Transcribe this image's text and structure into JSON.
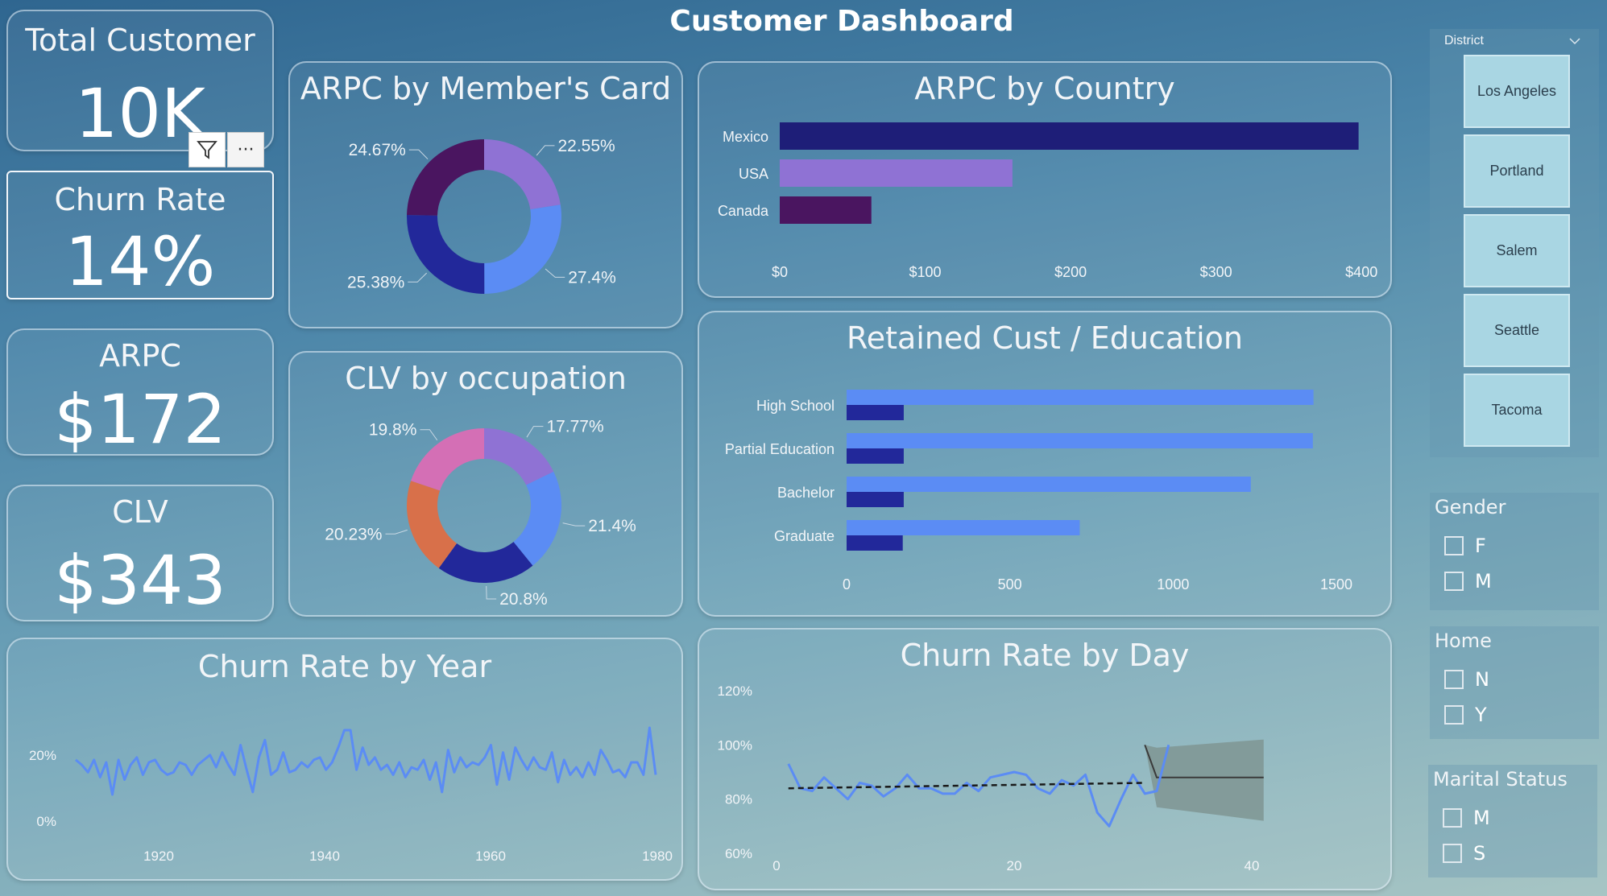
{
  "page": {
    "title": "Customer Dashboard"
  },
  "kpis": {
    "total_customer": {
      "title": "Total Customer",
      "value": "10K"
    },
    "churn_rate": {
      "title": "Churn Rate",
      "value": "14%"
    },
    "arpc": {
      "title": "ARPC",
      "value": "$172"
    },
    "clv": {
      "title": "CLV",
      "value": "$343"
    }
  },
  "visual_header": {
    "filter_icon": "filter-icon",
    "more_label": "···"
  },
  "charts": {
    "arpc_by_card": {
      "title": "ARPC by Member's Card"
    },
    "clv_by_occupation": {
      "title": "CLV by occupation"
    },
    "arpc_by_country": {
      "title": "ARPC by Country"
    },
    "retained_by_education": {
      "title": "Retained Cust / Education"
    },
    "churn_by_year": {
      "title": "Churn Rate by Year"
    },
    "churn_by_day": {
      "title": "Churn Rate by Day"
    }
  },
  "chart_data": [
    {
      "id": "arpc_by_card",
      "type": "pie",
      "title": "ARPC by Member's Card",
      "slices": [
        {
          "value": 22.55,
          "label": "22.55%",
          "color": "#8f72d4"
        },
        {
          "value": 27.4,
          "label": "27.4%",
          "color": "#5b8cf4"
        },
        {
          "value": 25.38,
          "label": "25.38%",
          "color": "#22289a"
        },
        {
          "value": 24.67,
          "label": "24.67%",
          "color": "#4a1560"
        }
      ]
    },
    {
      "id": "clv_by_occupation",
      "type": "pie",
      "title": "CLV by occupation",
      "slices": [
        {
          "value": 17.77,
          "label": "17.77%",
          "color": "#8f72d4"
        },
        {
          "value": 21.4,
          "label": "21.4%",
          "color": "#5b8cf4"
        },
        {
          "value": 20.8,
          "label": "20.8%",
          "color": "#22289a"
        },
        {
          "value": 20.23,
          "label": "20.23%",
          "color": "#d8704a"
        },
        {
          "value": 19.8,
          "label": "19.8%",
          "color": "#d46fb5"
        }
      ]
    },
    {
      "id": "arpc_by_country",
      "type": "bar",
      "title": "ARPC by Country",
      "categories": [
        "Mexico",
        "USA",
        "Canada"
      ],
      "values": [
        398,
        160,
        63
      ],
      "colors": [
        "#1e1e78",
        "#8f72d4",
        "#4a1560"
      ],
      "xlim": [
        0,
        400
      ],
      "ticks": [
        "$0",
        "$100",
        "$200",
        "$300",
        "$400"
      ]
    },
    {
      "id": "retained_by_education",
      "type": "bar",
      "title": "Retained Cust / Education",
      "categories": [
        "High School",
        "Partial Education",
        "Bachelor",
        "Graduate"
      ],
      "series": [
        {
          "values": [
            1430,
            1428,
            1238,
            714
          ],
          "color": "#5b8cf4"
        },
        {
          "values": [
            175,
            175,
            175,
            172
          ],
          "color": "#22289a"
        }
      ],
      "xlim": [
        0,
        1500
      ],
      "ticks": [
        "0",
        "500",
        "1000",
        "1500"
      ]
    },
    {
      "id": "churn_by_year",
      "type": "line",
      "title": "Churn Rate by Year",
      "x_start": 1910,
      "x_step": 1,
      "ylim": [
        0,
        0.27
      ],
      "y_ticks": [
        "0%",
        "20%"
      ],
      "x_ticks": [
        "1920",
        "1940",
        "1960",
        "1980"
      ],
      "color": "#5b8cf4",
      "values": [
        0.14,
        0.13,
        0.115,
        0.14,
        0.105,
        0.135,
        0.07,
        0.14,
        0.1,
        0.13,
        0.145,
        0.11,
        0.135,
        0.14,
        0.12,
        0.11,
        0.115,
        0.135,
        0.13,
        0.11,
        0.13,
        0.14,
        0.15,
        0.125,
        0.155,
        0.13,
        0.11,
        0.17,
        0.12,
        0.075,
        0.145,
        0.18,
        0.11,
        0.12,
        0.155,
        0.115,
        0.12,
        0.135,
        0.125,
        0.14,
        0.145,
        0.12,
        0.135,
        0.165,
        0.2,
        0.2,
        0.12,
        0.165,
        0.13,
        0.145,
        0.12,
        0.13,
        0.11,
        0.135,
        0.105,
        0.125,
        0.12,
        0.14,
        0.1,
        0.135,
        0.075,
        0.16,
        0.115,
        0.145,
        0.125,
        0.135,
        0.13,
        0.145,
        0.17,
        0.09,
        0.155,
        0.1,
        0.165,
        0.14,
        0.12,
        0.145,
        0.125,
        0.12,
        0.155,
        0.095,
        0.14,
        0.11,
        0.125,
        0.105,
        0.135,
        0.11,
        0.16,
        0.14,
        0.115,
        0.12,
        0.105,
        0.135,
        0.135,
        0.11,
        0.205,
        0.11
      ]
    },
    {
      "id": "churn_by_day",
      "type": "line",
      "title": "Churn Rate by Day",
      "xlim": [
        0,
        45
      ],
      "ylim": [
        0.6,
        1.2
      ],
      "y_ticks": [
        "120%",
        "100%",
        "80%",
        "60%"
      ],
      "x_ticks": [
        "0",
        "20",
        "40"
      ],
      "color": "#5b8cf4",
      "x": [
        1,
        2,
        3,
        4,
        5,
        6,
        7,
        8,
        9,
        10,
        11,
        12,
        13,
        14,
        15,
        16,
        17,
        18,
        19,
        20,
        21,
        22,
        23,
        24,
        25,
        26,
        27,
        28,
        29,
        30,
        31,
        32,
        33
      ],
      "values": [
        0.93,
        0.84,
        0.83,
        0.88,
        0.84,
        0.8,
        0.86,
        0.85,
        0.81,
        0.84,
        0.89,
        0.84,
        0.84,
        0.82,
        0.82,
        0.86,
        0.83,
        0.88,
        0.89,
        0.9,
        0.89,
        0.84,
        0.82,
        0.87,
        0.85,
        0.89,
        0.75,
        0.7,
        0.8,
        0.89,
        0.82,
        0.83,
        1.0
      ],
      "trend": {
        "from": [
          1,
          0.84
        ],
        "to": [
          31,
          0.86
        ],
        "color": "#1a1a1a"
      },
      "forecast": {
        "color": "#7f9593",
        "line": [
          [
            31,
            1.0
          ],
          [
            32,
            0.88
          ],
          [
            41,
            0.88
          ]
        ],
        "upper": [
          [
            31,
            1.0
          ],
          [
            32,
            0.99
          ],
          [
            41,
            1.02
          ]
        ],
        "lower": [
          [
            31,
            1.0
          ],
          [
            32,
            0.77
          ],
          [
            41,
            0.72
          ]
        ]
      }
    }
  ],
  "slicers": {
    "district": {
      "title": "District",
      "chevron": "chevron-down-icon",
      "items": [
        "Los Angeles",
        "Portland",
        "Salem",
        "Seattle",
        "Tacoma"
      ]
    },
    "gender": {
      "title": "Gender",
      "items": [
        "F",
        "M"
      ]
    },
    "home": {
      "title": "Home",
      "items": [
        "N",
        "Y"
      ]
    },
    "marital": {
      "title": "Marital Status",
      "items": [
        "M",
        "S"
      ]
    }
  }
}
